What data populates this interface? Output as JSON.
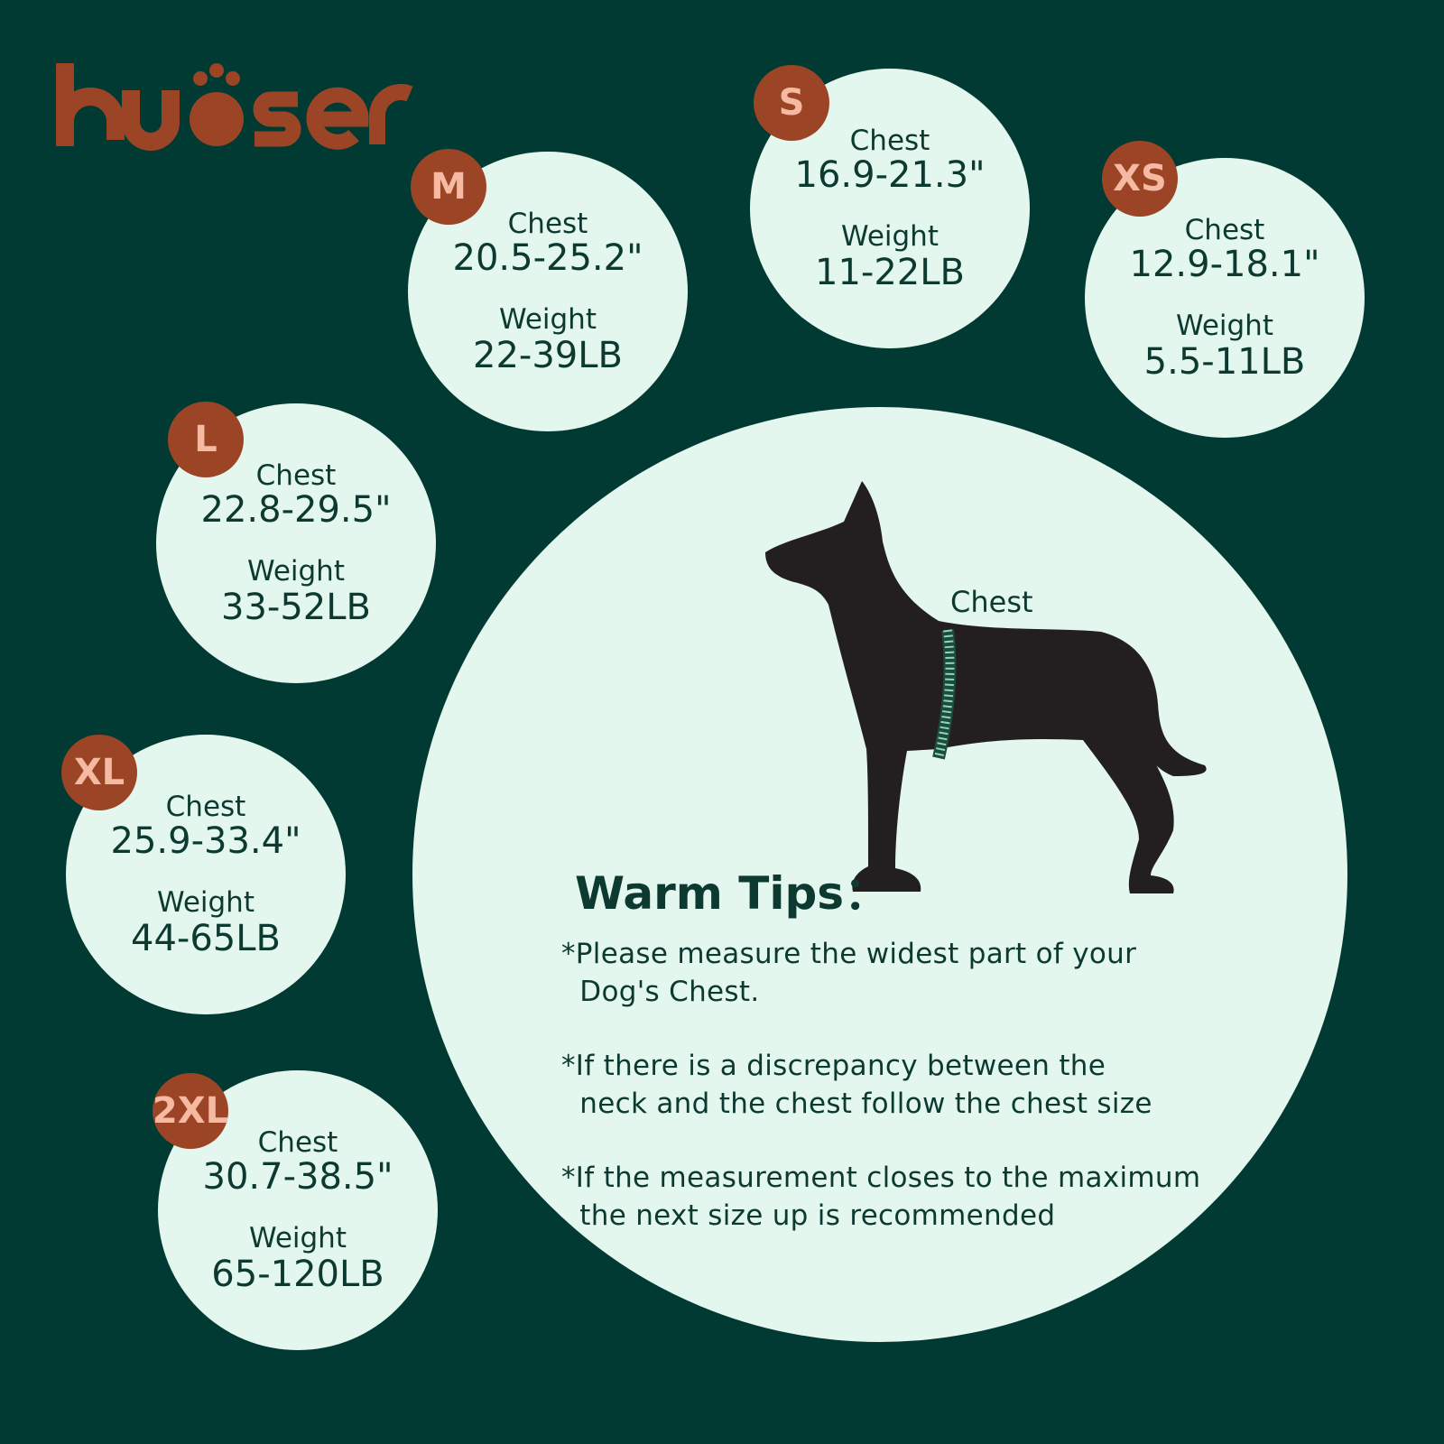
{
  "brand": {
    "logo_text": "kuoser",
    "color": "#9c4526"
  },
  "colors": {
    "background": "#013a32",
    "circle": "#e4f7ef",
    "badge": "#9c4526",
    "badge_text": "#f6b9a2",
    "text": "#0c3a30"
  },
  "sizes": [
    {
      "size": "M",
      "chest_label": "Chest",
      "chest": "20.5-25.2\"",
      "weight_label": "Weight",
      "weight": "22-39LB"
    },
    {
      "size": "S",
      "chest_label": "Chest",
      "chest": "16.9-21.3\"",
      "weight_label": "Weight",
      "weight": "11-22LB"
    },
    {
      "size": "XS",
      "chest_label": "Chest",
      "chest": "12.9-18.1\"",
      "weight_label": "Weight",
      "weight": "5.5-11LB"
    },
    {
      "size": "L",
      "chest_label": "Chest",
      "chest": "22.8-29.5\"",
      "weight_label": "Weight",
      "weight": "33-52LB"
    },
    {
      "size": "XL",
      "chest_label": "Chest",
      "chest": "25.9-33.4\"",
      "weight_label": "Weight",
      "weight": "44-65LB"
    },
    {
      "size": "2XL",
      "chest_label": "Chest",
      "chest": "30.7-38.5\"",
      "weight_label": "Weight",
      "weight": "65-120LB"
    }
  ],
  "diagram": {
    "chest_label": "Chest",
    "icon": "dog-silhouette-with-measuring-tape"
  },
  "tips": {
    "title": "Warm Tips：",
    "items": [
      "*Please measure the widest part of your\n  Dog's Chest.",
      "*If there is a discrepancy between the\n  neck and the chest follow the chest size",
      "*If the measurement closes to the maximum\n  the next size up is recommended"
    ]
  }
}
